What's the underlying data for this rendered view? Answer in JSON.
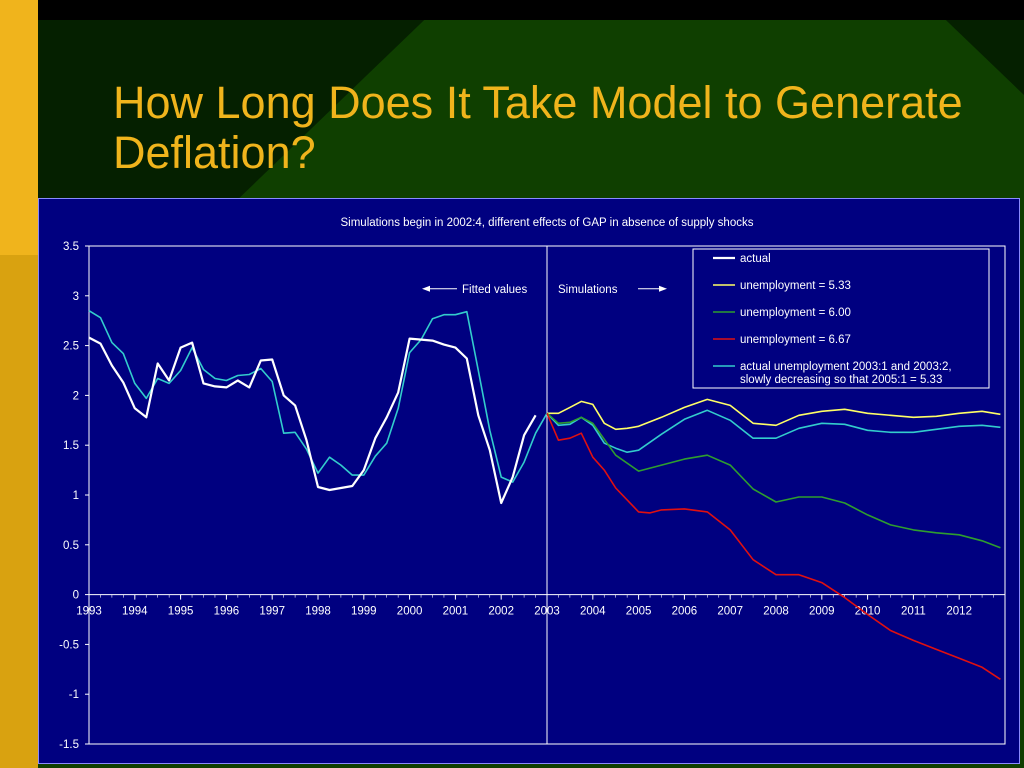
{
  "slide": {
    "title": "How Long Does It Take Model to Generate Deflation?"
  },
  "colors": {
    "background": "#0f3f00",
    "accent_bar": "#f0b41c",
    "title": "#f0b41c",
    "plot_background": "#000080",
    "axis_text": "#ffffff"
  },
  "chart_data": {
    "type": "line",
    "title": "Simulations begin in 2002:4, different effects of GAP in absence of supply shocks",
    "xlabel": "",
    "ylabel": "",
    "xlim": [
      1993.0,
      2013.0
    ],
    "ylim": [
      -1.5,
      3.5
    ],
    "y_ticks": [
      3.5,
      3,
      2.5,
      2,
      1.5,
      1,
      0.5,
      0,
      -0.5,
      -1,
      -1.5
    ],
    "x_tick_labels": [
      "1993",
      "1994",
      "1995",
      "1996",
      "1997",
      "1998",
      "1999",
      "2000",
      "2001",
      "2002",
      "2003",
      "2004",
      "2005",
      "2006",
      "2007",
      "2008",
      "2009",
      "2010",
      "2011",
      "2012"
    ],
    "grid": false,
    "legend_position": "top-right",
    "simulation_start": 2003.0,
    "annotations": {
      "fitted": "Fitted values",
      "simulations": "Simulations"
    },
    "series": [
      {
        "name": "actual",
        "color": "#ffffff",
        "width": 2.2,
        "legend": [
          "actual"
        ],
        "x": [
          1993.0,
          1993.25,
          1993.5,
          1993.75,
          1994.0,
          1994.25,
          1994.5,
          1994.75,
          1995.0,
          1995.25,
          1995.5,
          1995.75,
          1996.0,
          1996.25,
          1996.5,
          1996.75,
          1997.0,
          1997.25,
          1997.5,
          1997.75,
          1998.0,
          1998.25,
          1998.5,
          1998.75,
          1999.0,
          1999.25,
          1999.5,
          1999.75,
          2000.0,
          2000.25,
          2000.5,
          2000.75,
          2001.0,
          2001.25,
          2001.5,
          2001.75,
          2002.0,
          2002.25,
          2002.5,
          2002.75
        ],
        "y": [
          2.58,
          2.52,
          2.3,
          2.13,
          1.87,
          1.78,
          2.32,
          2.15,
          2.48,
          2.53,
          2.12,
          2.09,
          2.08,
          2.15,
          2.08,
          2.35,
          2.36,
          2.0,
          1.9,
          1.55,
          1.08,
          1.05,
          1.07,
          1.09,
          1.25,
          1.57,
          1.78,
          2.03,
          2.57,
          2.56,
          2.55,
          2.51,
          2.48,
          2.37,
          1.8,
          1.45,
          0.92,
          1.18,
          1.6,
          1.8
        ]
      },
      {
        "name": "unemployment = 5.33",
        "color": "#ffff66",
        "width": 1.6,
        "legend": [
          "unemployment = 5.33"
        ],
        "x": [
          2003.0,
          2003.25,
          2003.5,
          2003.75,
          2004.0,
          2004.25,
          2004.5,
          2004.75,
          2005.0,
          2005.5,
          2006.0,
          2006.5,
          2007.0,
          2007.5,
          2008.0,
          2008.5,
          2009.0,
          2009.5,
          2010.0,
          2010.5,
          2011.0,
          2011.5,
          2012.0,
          2012.5,
          2012.9
        ],
        "y": [
          1.82,
          1.82,
          1.88,
          1.94,
          1.91,
          1.72,
          1.66,
          1.67,
          1.69,
          1.78,
          1.88,
          1.96,
          1.9,
          1.72,
          1.7,
          1.8,
          1.84,
          1.86,
          1.82,
          1.8,
          1.78,
          1.79,
          1.82,
          1.84,
          1.81
        ]
      },
      {
        "name": "unemployment = 6.00",
        "color": "#2e9e2e",
        "width": 1.6,
        "legend": [
          "unemployment = 6.00"
        ],
        "x": [
          2003.0,
          2003.25,
          2003.5,
          2003.75,
          2004.0,
          2004.5,
          2005.0,
          2005.5,
          2006.0,
          2006.5,
          2007.0,
          2007.5,
          2008.0,
          2008.5,
          2009.0,
          2009.5,
          2010.0,
          2010.5,
          2011.0,
          2011.5,
          2012.0,
          2012.5,
          2012.9
        ],
        "y": [
          1.82,
          1.72,
          1.73,
          1.78,
          1.72,
          1.4,
          1.24,
          1.3,
          1.36,
          1.4,
          1.3,
          1.06,
          0.93,
          0.98,
          0.98,
          0.92,
          0.8,
          0.7,
          0.65,
          0.62,
          0.6,
          0.54,
          0.47
        ]
      },
      {
        "name": "unemployment = 6.67",
        "color": "#e01010",
        "width": 1.6,
        "legend": [
          "unemployment = 6.67"
        ],
        "x": [
          2003.0,
          2003.25,
          2003.5,
          2003.75,
          2004.0,
          2004.25,
          2004.5,
          2005.0,
          2005.25,
          2005.5,
          2006.0,
          2006.5,
          2007.0,
          2007.5,
          2008.0,
          2008.5,
          2009.0,
          2009.5,
          2010.0,
          2010.5,
          2011.0,
          2011.5,
          2012.0,
          2012.5,
          2012.9
        ],
        "y": [
          1.82,
          1.55,
          1.57,
          1.62,
          1.38,
          1.25,
          1.07,
          0.83,
          0.82,
          0.85,
          0.86,
          0.83,
          0.65,
          0.35,
          0.2,
          0.2,
          0.12,
          -0.03,
          -0.2,
          -0.36,
          -0.46,
          -0.55,
          -0.64,
          -0.73,
          -0.85
        ]
      },
      {
        "name": "actual unemployment 2003:1 and 2003:2, slowly decreasing so that 2005:1 = 5.33",
        "color": "#33cccc",
        "width": 1.6,
        "legend": [
          "actual unemployment 2003:1 and 2003:2,",
          "slowly decreasing so that 2005:1 = 5.33"
        ],
        "x": [
          1993.0,
          1993.25,
          1993.5,
          1993.75,
          1994.0,
          1994.25,
          1994.5,
          1994.75,
          1995.0,
          1995.25,
          1995.5,
          1995.75,
          1996.0,
          1996.25,
          1996.5,
          1996.75,
          1997.0,
          1997.25,
          1997.5,
          1997.75,
          1998.0,
          1998.25,
          1998.5,
          1998.75,
          1999.0,
          1999.25,
          1999.5,
          1999.75,
          2000.0,
          2000.25,
          2000.5,
          2000.75,
          2001.0,
          2001.25,
          2001.5,
          2001.75,
          2002.0,
          2002.25,
          2002.5,
          2002.75,
          2003.0,
          2003.25,
          2003.5,
          2003.75,
          2004.0,
          2004.25,
          2004.5,
          2004.75,
          2005.0,
          2005.5,
          2006.0,
          2006.5,
          2007.0,
          2007.5,
          2008.0,
          2008.5,
          2009.0,
          2009.5,
          2010.0,
          2010.5,
          2011.0,
          2011.5,
          2012.0,
          2012.5,
          2012.9
        ],
        "y": [
          2.85,
          2.78,
          2.53,
          2.42,
          2.12,
          1.97,
          2.17,
          2.12,
          2.25,
          2.48,
          2.26,
          2.17,
          2.15,
          2.2,
          2.21,
          2.27,
          2.14,
          1.62,
          1.63,
          1.46,
          1.22,
          1.38,
          1.3,
          1.2,
          1.2,
          1.39,
          1.52,
          1.87,
          2.43,
          2.56,
          2.77,
          2.81,
          2.81,
          2.84,
          2.25,
          1.65,
          1.18,
          1.13,
          1.33,
          1.62,
          1.82,
          1.7,
          1.71,
          1.78,
          1.7,
          1.52,
          1.47,
          1.43,
          1.45,
          1.61,
          1.76,
          1.85,
          1.75,
          1.57,
          1.57,
          1.67,
          1.72,
          1.71,
          1.65,
          1.63,
          1.63,
          1.66,
          1.69,
          1.7,
          1.68
        ]
      }
    ]
  }
}
